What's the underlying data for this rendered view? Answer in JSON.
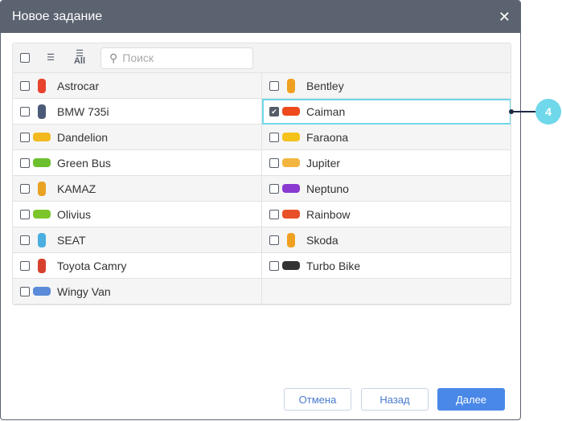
{
  "dialog": {
    "title": "Новое задание",
    "close_icon": "close-icon"
  },
  "toolbar": {
    "search_placeholder": "Поиск",
    "all_label": "All"
  },
  "units": [
    {
      "name": "Astrocar",
      "color": "#e8432e",
      "checked": false,
      "shape": "top"
    },
    {
      "name": "Bentley",
      "color": "#f0a020",
      "checked": false,
      "shape": "top"
    },
    {
      "name": "BMW 735i",
      "color": "#4a5a78",
      "checked": false,
      "shape": "top"
    },
    {
      "name": "Caiman",
      "color": "#ee4a1e",
      "checked": true,
      "shape": "side"
    },
    {
      "name": "Dandelion",
      "color": "#f2b91e",
      "checked": false,
      "shape": "side"
    },
    {
      "name": "Faraona",
      "color": "#f5c21a",
      "checked": false,
      "shape": "side"
    },
    {
      "name": "Green Bus",
      "color": "#6cbf2e",
      "checked": false,
      "shape": "side"
    },
    {
      "name": "Jupiter",
      "color": "#f2b640",
      "checked": false,
      "shape": "side"
    },
    {
      "name": "KAMAZ",
      "color": "#e8a224",
      "checked": false,
      "shape": "top"
    },
    {
      "name": "Neptuno",
      "color": "#8a3ad0",
      "checked": false,
      "shape": "side"
    },
    {
      "name": "Olivius",
      "color": "#7cc62c",
      "checked": false,
      "shape": "side"
    },
    {
      "name": "Rainbow",
      "color": "#e8502a",
      "checked": false,
      "shape": "side"
    },
    {
      "name": "SEAT",
      "color": "#4aaee0",
      "checked": false,
      "shape": "top"
    },
    {
      "name": "Skoda",
      "color": "#f0a020",
      "checked": false,
      "shape": "top"
    },
    {
      "name": "Toyota Camry",
      "color": "#d8402e",
      "checked": false,
      "shape": "top"
    },
    {
      "name": "Turbo Bike",
      "color": "#333333",
      "checked": false,
      "shape": "side"
    },
    {
      "name": "Wingy Van",
      "color": "#5a8ad8",
      "checked": false,
      "shape": "side"
    }
  ],
  "callout": {
    "number": "4"
  },
  "footer": {
    "cancel": "Отмена",
    "back": "Назад",
    "next": "Далее"
  }
}
